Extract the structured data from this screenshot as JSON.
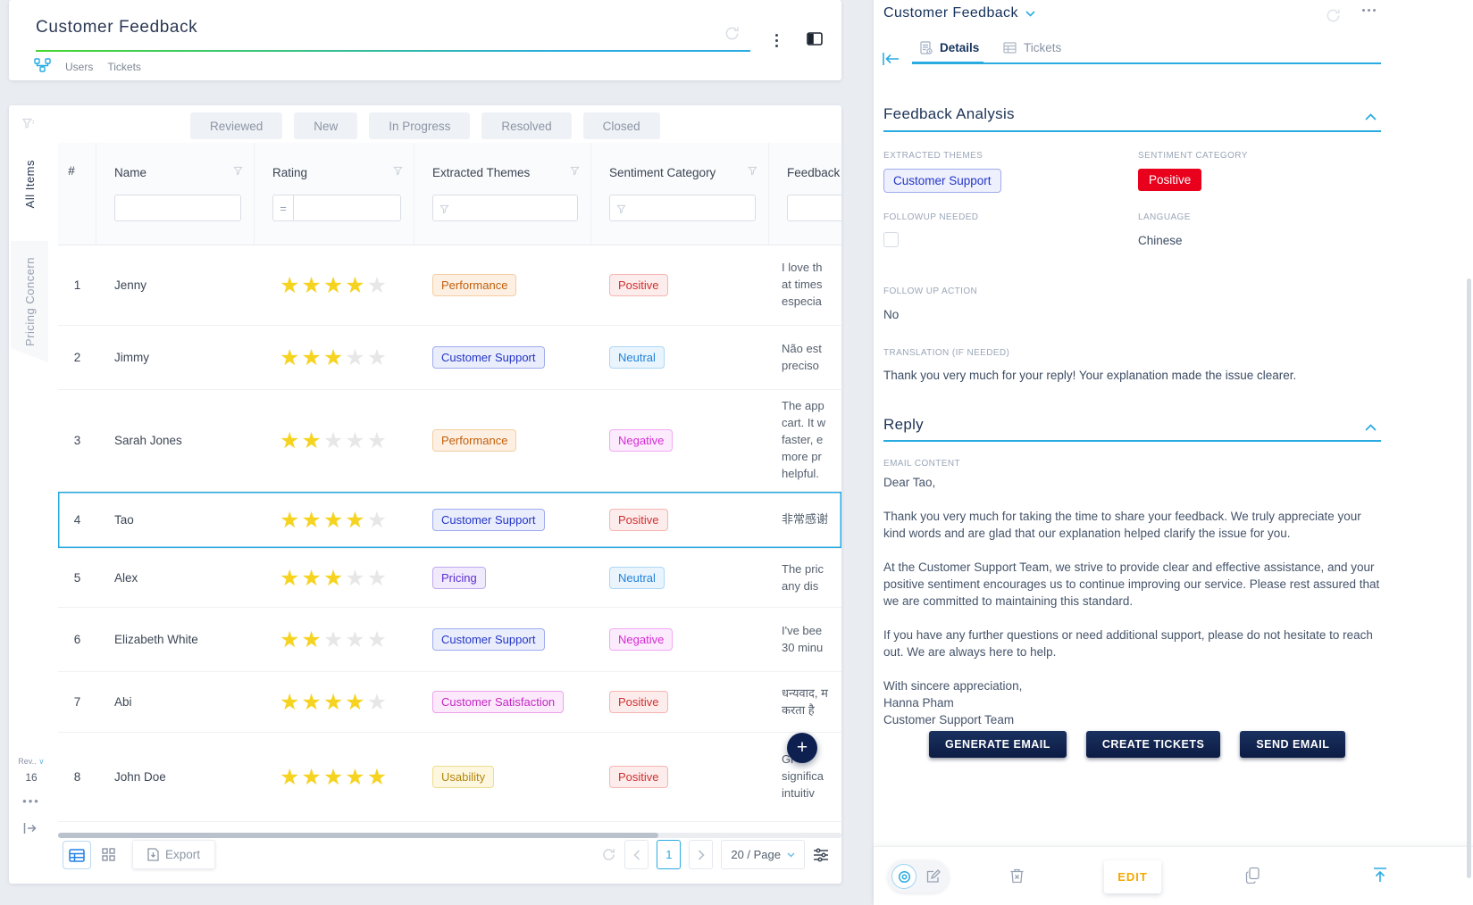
{
  "colors": {
    "accent_blue": "#29abe2",
    "navy": "#1d3356",
    "positive_red": "#e8001c",
    "gradient_green": "#44d62c",
    "star_yellow": "#f5d320"
  },
  "left_panel": {
    "header": {
      "title": "Customer Feedback",
      "links": [
        {
          "label": "Users"
        },
        {
          "label": "Tickets"
        }
      ]
    },
    "status_filters": [
      "Reviewed",
      "New",
      "In Progress",
      "Resolved",
      "Closed"
    ],
    "side_tabs": [
      {
        "label": "All Items",
        "active": true
      },
      {
        "label": "Pricing Concern",
        "active": false
      }
    ],
    "side_footer": {
      "rev_label": "Rev..",
      "count": "16"
    },
    "table": {
      "columns": [
        {
          "label": "#",
          "filter": "none"
        },
        {
          "label": "Name",
          "filter": "input"
        },
        {
          "label": "Rating",
          "filter": "eq-input"
        },
        {
          "label": "Extracted Themes",
          "filter": "funnel-input"
        },
        {
          "label": "Sentiment Category",
          "filter": "funnel-input"
        },
        {
          "label": "Feedback",
          "filter": "input"
        }
      ],
      "rating_eq": "=",
      "rows": [
        {
          "num": "1",
          "name": "Jenny",
          "rating": 4,
          "theme": "Performance",
          "theme_class": "orange",
          "sentiment": "Positive",
          "sentiment_class": "pos",
          "feedback": "I love th\nat times\nespecia",
          "selected": false
        },
        {
          "num": "2",
          "name": "Jimmy",
          "rating": 3,
          "theme": "Customer Support",
          "theme_class": "indigo",
          "sentiment": "Neutral",
          "sentiment_class": "neu",
          "feedback": "Não est\npreciso",
          "selected": false
        },
        {
          "num": "3",
          "name": "Sarah Jones",
          "rating": 2,
          "theme": "Performance",
          "theme_class": "orange",
          "sentiment": "Negative",
          "sentiment_class": "neg",
          "feedback": "The app\ncart. It w\nfaster, e\nmore pr\nhelpful.",
          "selected": false
        },
        {
          "num": "4",
          "name": "Tao",
          "rating": 4,
          "theme": "Customer Support",
          "theme_class": "indigo",
          "sentiment": "Positive",
          "sentiment_class": "pos",
          "feedback": "非常感谢",
          "selected": true
        },
        {
          "num": "5",
          "name": "Alex",
          "rating": 3,
          "theme": "Pricing",
          "theme_class": "purple",
          "sentiment": "Neutral",
          "sentiment_class": "neu",
          "feedback": "The pric\nany dis",
          "selected": false
        },
        {
          "num": "6",
          "name": "Elizabeth White",
          "rating": 2,
          "theme": "Customer Support",
          "theme_class": "indigo",
          "sentiment": "Negative",
          "sentiment_class": "neg",
          "feedback": "I've bee\n30 minu",
          "selected": false
        },
        {
          "num": "7",
          "name": "Abi",
          "rating": 4,
          "theme": "Customer Satisfaction",
          "theme_class": "magenta",
          "sentiment": "Positive",
          "sentiment_class": "pos",
          "feedback": "धन्यवाद, म\nकरता है",
          "selected": false
        },
        {
          "num": "8",
          "name": "John Doe",
          "rating": 5,
          "theme": "Usability",
          "theme_class": "yellow",
          "sentiment": "Positive",
          "sentiment_class": "pos",
          "feedback": "Gr\nsignifica\nintuitiv",
          "selected": false
        }
      ]
    },
    "footer": {
      "export_label": "Export",
      "page": "1",
      "page_size": "20 / Page"
    }
  },
  "right_panel": {
    "title": "Customer Feedback",
    "tabs": [
      {
        "label": "Details",
        "active": true
      },
      {
        "label": "Tickets",
        "active": false
      }
    ],
    "feedback_analysis": {
      "title": "Feedback Analysis",
      "extracted_themes_label": "EXTRACTED THEMES",
      "extracted_themes_value": "Customer Support",
      "sentiment_label": "SENTIMENT CATEGORY",
      "sentiment_value": "Positive",
      "followup_needed_label": "FOLLOWUP NEEDED",
      "language_label": "LANGUAGE",
      "language_value": "Chinese",
      "follow_up_action_label": "FOLLOW UP ACTION",
      "follow_up_action_value": "No",
      "translation_label": "TRANSLATION (IF NEEDED)",
      "translation_value": "Thank you very much for your reply! Your explanation made the issue clearer."
    },
    "reply": {
      "title": "Reply",
      "email_label": "EMAIL CONTENT",
      "email_paragraphs": [
        "Dear Tao,",
        "Thank you very much for taking the time to share your feedback. We truly appreciate your kind words and are glad that our explanation helped clarify the issue for you.",
        "At the Customer Support Team, we strive to provide clear and effective assistance, and your positive sentiment encourages us to continue improving our service. Please rest assured that we are committed to maintaining this standard.",
        "If you have any further questions or need additional support, please do not hesitate to reach out. We are always here to help.",
        "With sincere appreciation,\nHanna Pham\nCustomer Support Team"
      ]
    },
    "action_buttons": [
      "GENERATE EMAIL",
      "CREATE TICKETS",
      "SEND EMAIL"
    ],
    "footer_edit_label": "EDIT"
  }
}
